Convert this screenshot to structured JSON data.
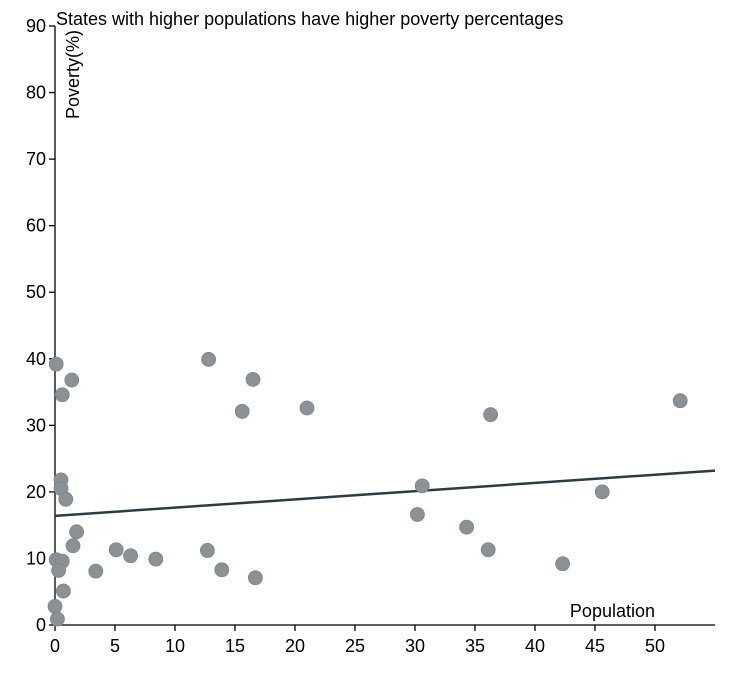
{
  "chart_data": {
    "type": "scatter",
    "title": "States with higher populations have higher poverty percentages",
    "xlabel": "Population",
    "ylabel": "Poverty(%)",
    "xlim": [
      0,
      55
    ],
    "ylim": [
      0,
      90
    ],
    "x_ticks": [
      0,
      5,
      10,
      15,
      20,
      25,
      30,
      35,
      40,
      45,
      50
    ],
    "y_ticks": [
      0,
      10,
      20,
      30,
      40,
      50,
      60,
      70,
      80,
      90
    ],
    "grid": false,
    "points": [
      {
        "x": 0.1,
        "y": 39.2
      },
      {
        "x": 0.5,
        "y": 21.8
      },
      {
        "x": 0.5,
        "y": 20.5
      },
      {
        "x": 0.6,
        "y": 34.6
      },
      {
        "x": 0.9,
        "y": 18.9
      },
      {
        "x": 1.4,
        "y": 36.8
      },
      {
        "x": 1.5,
        "y": 11.9
      },
      {
        "x": 1.8,
        "y": 14.0
      },
      {
        "x": 0.1,
        "y": 9.8
      },
      {
        "x": 0.6,
        "y": 9.6
      },
      {
        "x": 0.3,
        "y": 8.2
      },
      {
        "x": 0.7,
        "y": 5.1
      },
      {
        "x": 0.0,
        "y": 2.8
      },
      {
        "x": 0.2,
        "y": 0.9
      },
      {
        "x": 3.4,
        "y": 8.1
      },
      {
        "x": 5.1,
        "y": 11.3
      },
      {
        "x": 6.3,
        "y": 10.4
      },
      {
        "x": 8.4,
        "y": 9.9
      },
      {
        "x": 12.8,
        "y": 39.9
      },
      {
        "x": 12.7,
        "y": 11.2
      },
      {
        "x": 13.9,
        "y": 8.3
      },
      {
        "x": 15.6,
        "y": 32.1
      },
      {
        "x": 16.5,
        "y": 36.9
      },
      {
        "x": 16.7,
        "y": 7.1
      },
      {
        "x": 21.0,
        "y": 32.6
      },
      {
        "x": 30.2,
        "y": 16.6
      },
      {
        "x": 30.6,
        "y": 20.9
      },
      {
        "x": 34.3,
        "y": 14.7
      },
      {
        "x": 36.1,
        "y": 11.3
      },
      {
        "x": 36.3,
        "y": 31.6
      },
      {
        "x": 42.3,
        "y": 9.2
      },
      {
        "x": 45.6,
        "y": 20.0
      },
      {
        "x": 52.1,
        "y": 33.7
      }
    ],
    "trendline": {
      "x": [
        0,
        55
      ],
      "y": [
        16.4,
        23.2
      ]
    },
    "point_color": "#8c9196",
    "trend_color": "#2c3a42"
  }
}
